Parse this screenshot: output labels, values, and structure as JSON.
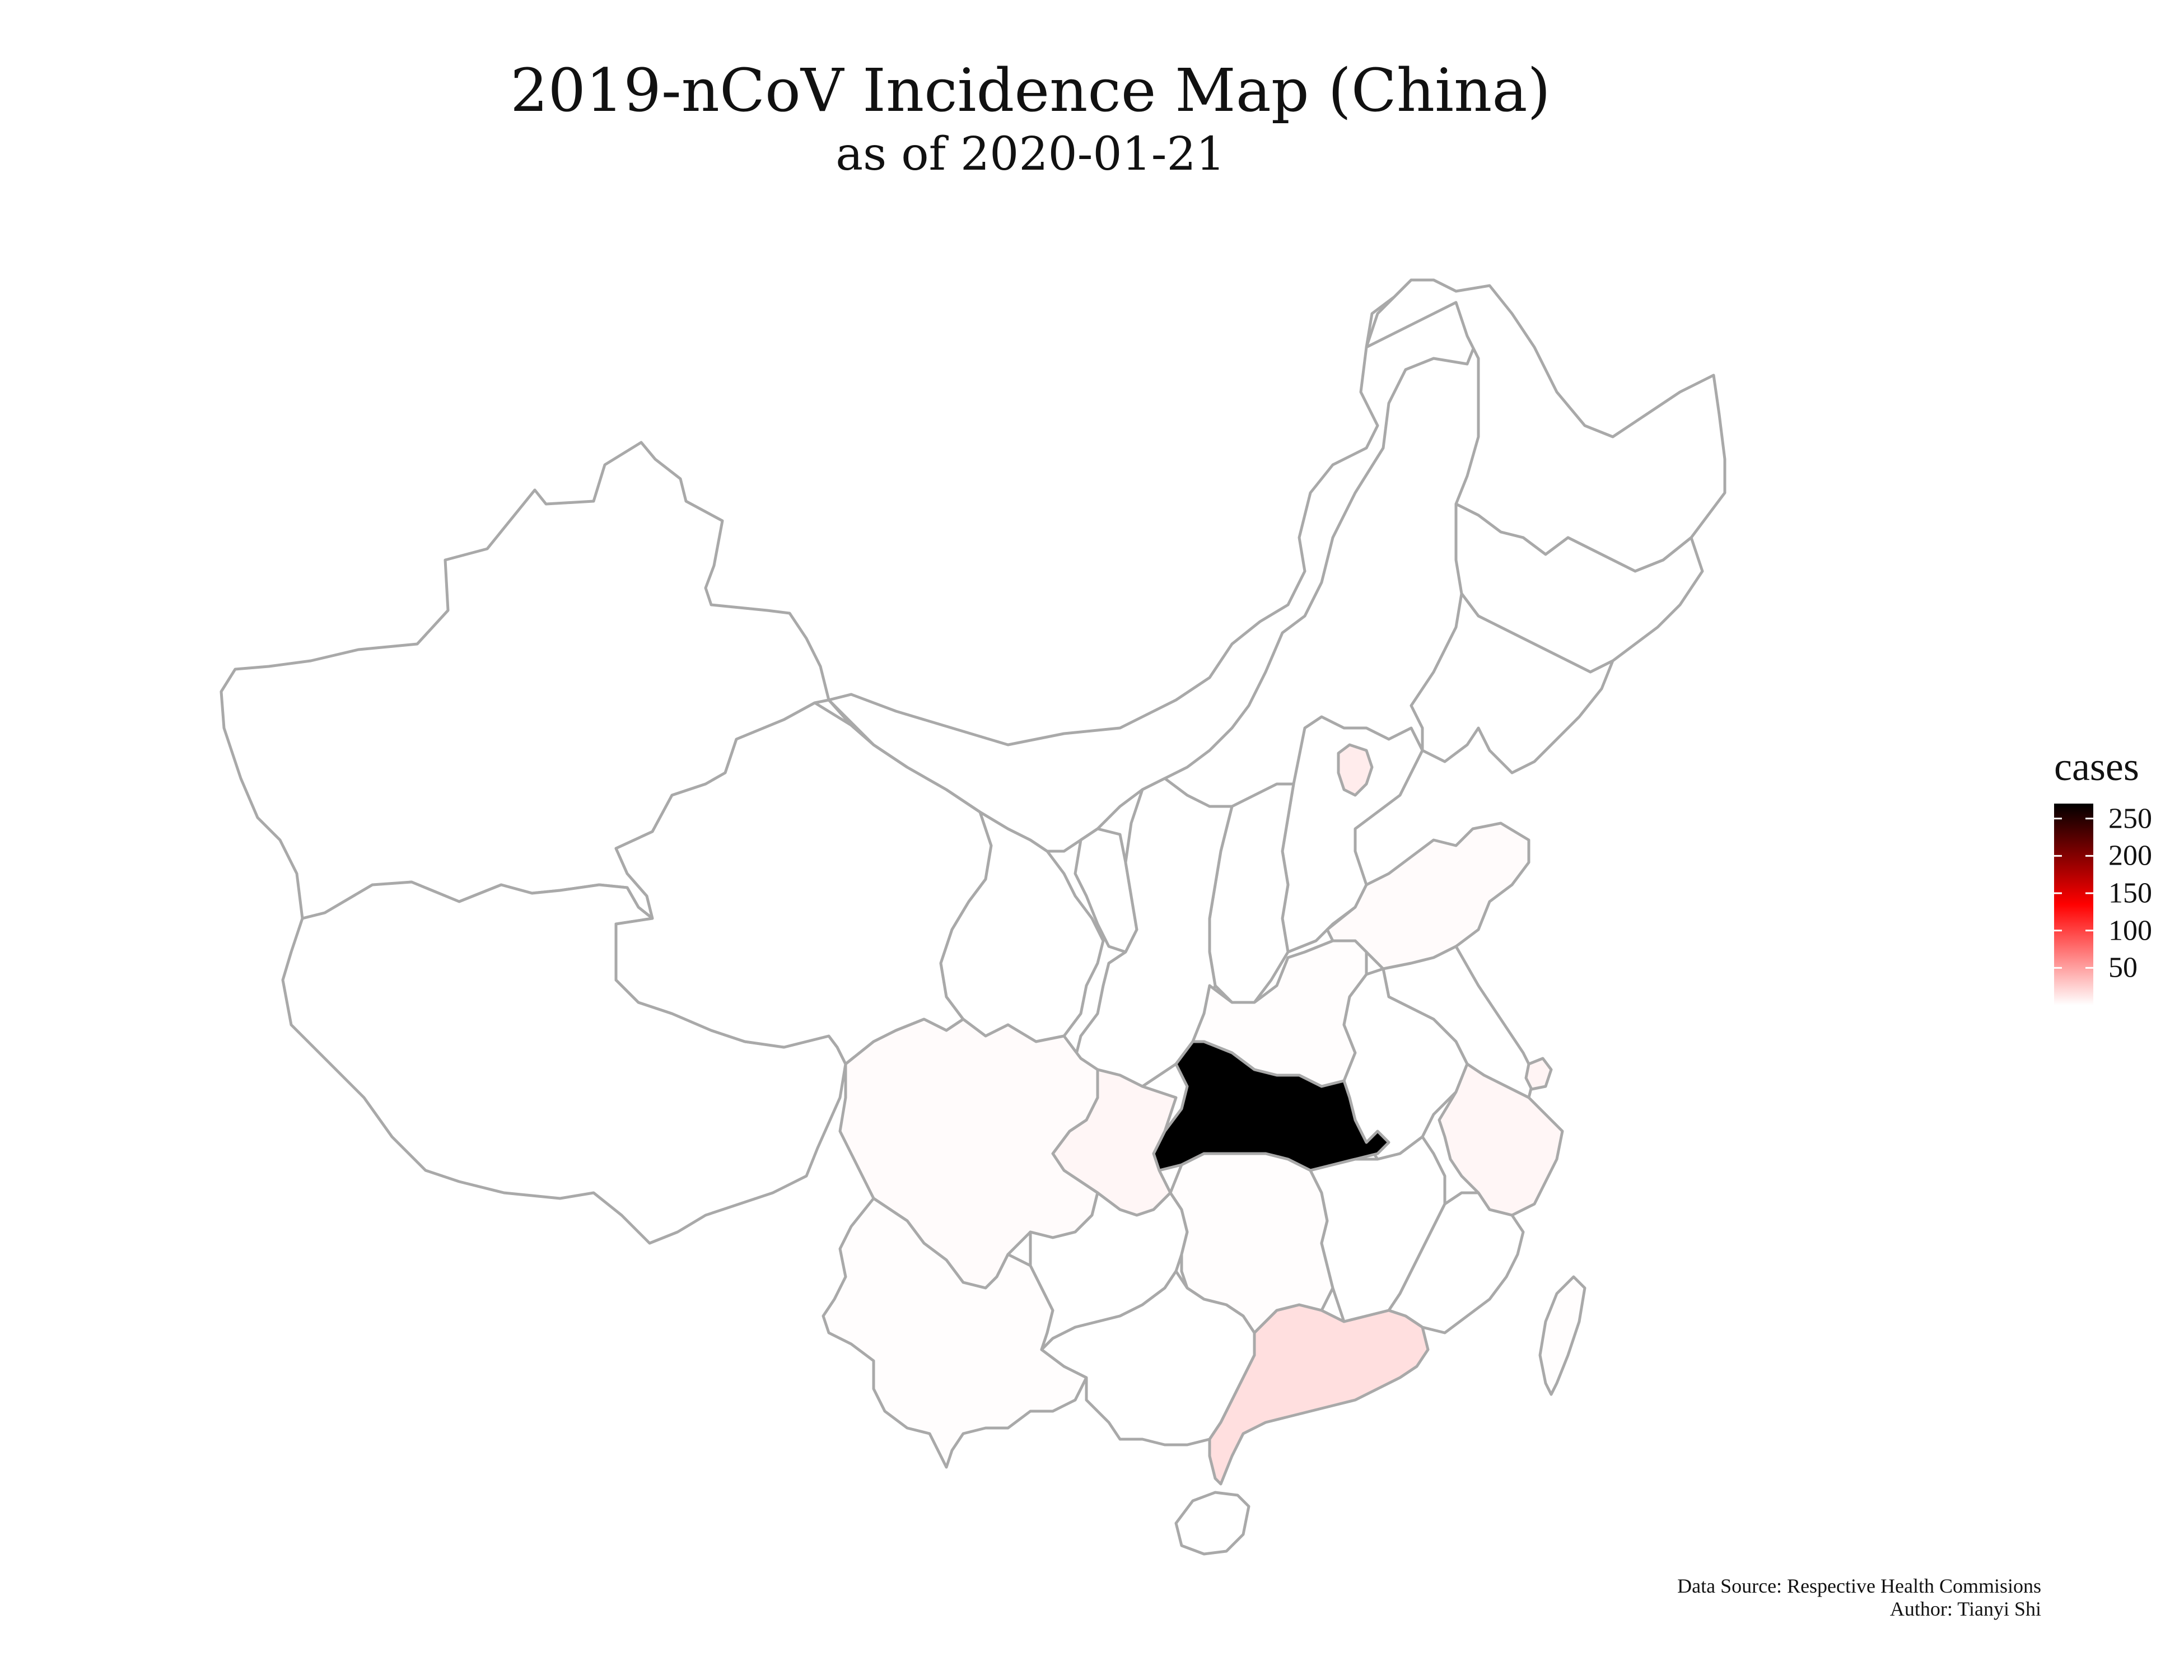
{
  "title": "2019-nCoV Incidence Map (China)",
  "subtitle": "as of 2020-01-21",
  "legend": {
    "title": "cases",
    "ticks": [
      "250",
      "200",
      "150",
      "100",
      "50"
    ],
    "tick_values": [
      250,
      200,
      150,
      100,
      50
    ],
    "range": [
      0,
      270
    ],
    "colors": {
      "low": "#ffffff",
      "mid": "#ff0000",
      "high": "#000000"
    }
  },
  "caption": {
    "source": "Data Source: Respective Health Commisions",
    "author": "Author: Tianyi Shi"
  },
  "provinces": [
    {
      "name": "Xinjiang",
      "cases": 0
    },
    {
      "name": "Tibet",
      "cases": 0
    },
    {
      "name": "Qinghai",
      "cases": 0
    },
    {
      "name": "Gansu",
      "cases": 0
    },
    {
      "name": "Inner Mongolia",
      "cases": 0
    },
    {
      "name": "Heilongjiang",
      "cases": 0
    },
    {
      "name": "Jilin",
      "cases": 0
    },
    {
      "name": "Liaoning",
      "cases": 0
    },
    {
      "name": "Beijing",
      "cases": 10
    },
    {
      "name": "Hebei",
      "cases": 0
    },
    {
      "name": "Shanxi",
      "cases": 0
    },
    {
      "name": "Ningxia",
      "cases": 0
    },
    {
      "name": "Shaanxi",
      "cases": 0
    },
    {
      "name": "Shandong",
      "cases": 2
    },
    {
      "name": "Henan",
      "cases": 1
    },
    {
      "name": "Jiangsu",
      "cases": 0
    },
    {
      "name": "Shanghai",
      "cases": 6
    },
    {
      "name": "Anhui",
      "cases": 0
    },
    {
      "name": "Hubei",
      "cases": 270
    },
    {
      "name": "Sichuan",
      "cases": 2
    },
    {
      "name": "Chongqing",
      "cases": 5
    },
    {
      "name": "Zhejiang",
      "cases": 5
    },
    {
      "name": "Hunan",
      "cases": 1
    },
    {
      "name": "Jiangxi",
      "cases": 0
    },
    {
      "name": "Fujian",
      "cases": 0
    },
    {
      "name": "Yunnan",
      "cases": 1
    },
    {
      "name": "Guizhou",
      "cases": 0
    },
    {
      "name": "Guangxi",
      "cases": 0
    },
    {
      "name": "Guangdong",
      "cases": 17
    },
    {
      "name": "Hainan",
      "cases": 0
    },
    {
      "name": "Taiwan",
      "cases": 1
    }
  ]
}
